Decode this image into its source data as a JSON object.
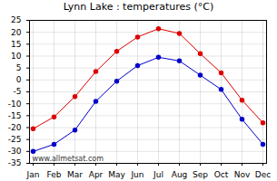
{
  "chart_data": {
    "type": "line",
    "title": "Lynn Lake : temperatures (°C)",
    "categories": [
      "Jan",
      "Feb",
      "Mar",
      "Apr",
      "May",
      "Jun",
      "Jul",
      "Aug",
      "Sep",
      "Oct",
      "Nov",
      "Dec"
    ],
    "series": [
      {
        "color": "#dd0000",
        "marker": "circle",
        "values": [
          -20.5,
          -15.5,
          -7,
          3.5,
          12,
          18,
          21.5,
          19.5,
          11,
          3,
          -8.5,
          -18
        ]
      },
      {
        "color": "#0000cc",
        "marker": "circle",
        "values": [
          -30,
          -27,
          -21,
          -9,
          -0.5,
          6,
          9.5,
          8,
          2,
          -4,
          -16.5,
          -27
        ]
      }
    ],
    "ylim": [
      -35,
      25
    ],
    "yticks": [
      -35,
      -30,
      -25,
      -20,
      -15,
      -10,
      -5,
      0,
      5,
      10,
      15,
      20,
      25
    ],
    "grid": true,
    "annotations": [
      "www.allmetsat.com"
    ]
  }
}
